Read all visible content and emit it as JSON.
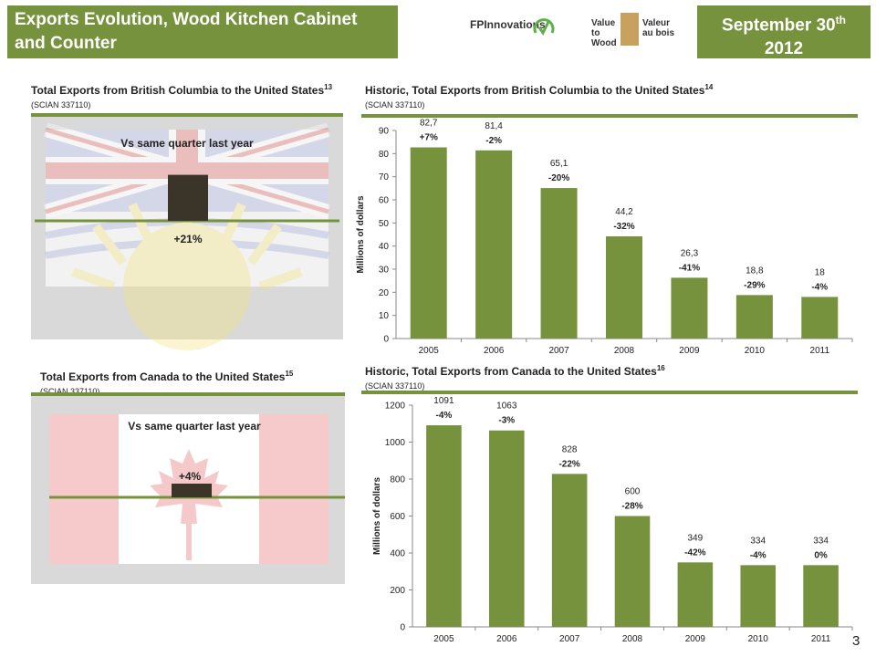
{
  "header": {
    "title": "Exports Evolution, Wood Kitchen Cabinet and Counter",
    "date_main": "September 30",
    "date_sup": "th",
    "date_year": "2012",
    "logo_fp": "FPInnovations",
    "logo_vw_en": "Value to Wood",
    "logo_vw_fr": "Valeur au bois"
  },
  "bc_panel": {
    "title": "Total Exports from British Columbia to the United States",
    "ref": "13",
    "code": "(SCIAN 337110)",
    "vs_label": "Vs same quarter last year",
    "change": "+21%",
    "change_value": 21
  },
  "ca_panel": {
    "title": "Total Exports from Canada to the United States",
    "ref": "15",
    "code": "(SCIAN 337110)",
    "vs_label": "Vs same quarter last year",
    "change": "+4%",
    "change_value": 4
  },
  "chart_data": [
    {
      "type": "bar",
      "title": "Historic, Total Exports from British Columbia to the United States",
      "ref": "14",
      "subtitle": "(SCIAN 337110)",
      "ylabel": "Millions of dollars",
      "ylim": [
        0,
        90
      ],
      "yticks": [
        0,
        10,
        20,
        30,
        40,
        50,
        60,
        70,
        80,
        90
      ],
      "categories": [
        "2005",
        "2006",
        "2007",
        "2008",
        "2009",
        "2010",
        "2011"
      ],
      "values": [
        82.7,
        81.4,
        65.1,
        44.2,
        26.3,
        18.8,
        18
      ],
      "value_labels": [
        "82,7",
        "81,4",
        "65,1",
        "44,2",
        "26,3",
        "18,8",
        "18"
      ],
      "pct_labels": [
        "+7%",
        "-2%",
        "-20%",
        "-32%",
        "-41%",
        "-29%",
        "-4%"
      ],
      "color": "#76923c"
    },
    {
      "type": "bar",
      "title": "Historic, Total Exports from Canada to the United States",
      "ref": "16",
      "subtitle": "(SCIAN 337110)",
      "ylabel": "Millions of dollars",
      "ylim": [
        0,
        1200
      ],
      "yticks": [
        0,
        200,
        400,
        600,
        800,
        1000,
        1200
      ],
      "categories": [
        "2005",
        "2006",
        "2007",
        "2008",
        "2009",
        "2010",
        "2011"
      ],
      "values": [
        1091,
        1063,
        828,
        600,
        349,
        334,
        334
      ],
      "value_labels": [
        "1091",
        "1063",
        "828",
        "600",
        "349",
        "334",
        "334"
      ],
      "pct_labels": [
        "-4%",
        "-3%",
        "-22%",
        "-28%",
        "-42%",
        "-4%",
        "0%"
      ],
      "color": "#76923c"
    }
  ],
  "page_number": "3",
  "colors": {
    "accent": "#76923c",
    "bar_change": "#3b3428"
  }
}
